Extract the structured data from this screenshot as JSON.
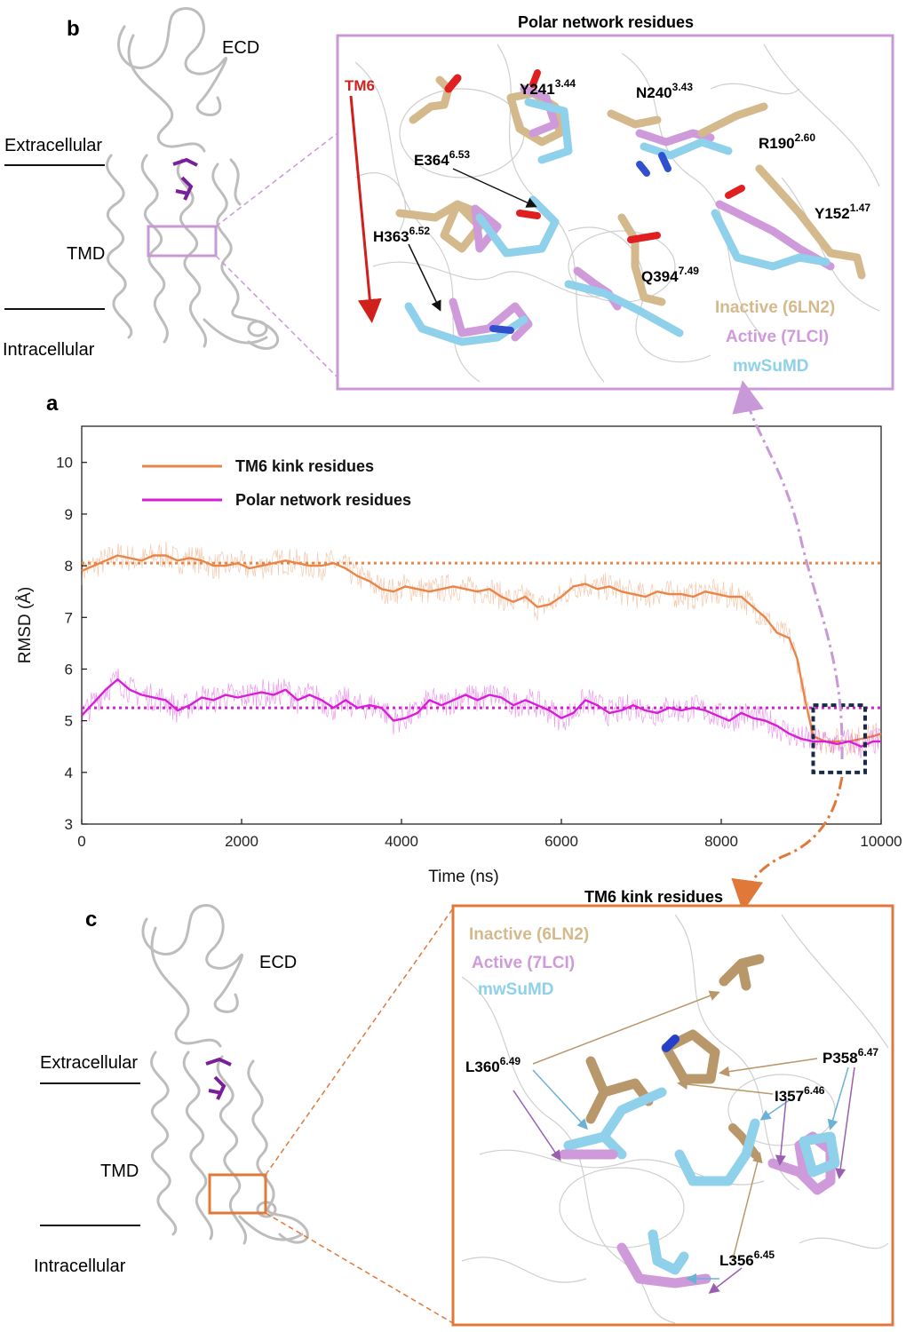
{
  "panel_letters": {
    "a": "a",
    "b": "b",
    "c": "c"
  },
  "receptor_labels": {
    "ecd": "ECD",
    "extracellular": "Extracellular",
    "tmd": "TMD",
    "intracellular": "Intracellular"
  },
  "panel_b": {
    "title": "Polar network residues",
    "tm6": "TM6",
    "residues": [
      {
        "name": "Y241",
        "sup": "3.44"
      },
      {
        "name": "N240",
        "sup": "3.43"
      },
      {
        "name": "R190",
        "sup": "2.60"
      },
      {
        "name": "E364",
        "sup": "6.53"
      },
      {
        "name": "Y152",
        "sup": "1.47"
      },
      {
        "name": "H363",
        "sup": "6.52"
      },
      {
        "name": "Q394",
        "sup": "7.49"
      }
    ],
    "legend": [
      {
        "label": "Inactive (6LN2)",
        "color": "#d4b98c"
      },
      {
        "label": "Active (7LCI)",
        "color": "#cf9ad9"
      },
      {
        "label": "mwSuMD",
        "color": "#8fd0ea"
      }
    ]
  },
  "panel_c": {
    "title": "TM6 kink residues",
    "residues": [
      {
        "name": "L360",
        "sup": "6.49"
      },
      {
        "name": "P358",
        "sup": "6.47"
      },
      {
        "name": "I357",
        "sup": "6.46"
      },
      {
        "name": "L356",
        "sup": "6.45"
      }
    ],
    "legend": [
      {
        "label": "Inactive (6LN2)",
        "color": "#d4b98c"
      },
      {
        "label": "Active (7LCI)",
        "color": "#cf9ad9"
      },
      {
        "label": "mwSuMD",
        "color": "#8fd0ea"
      }
    ]
  },
  "chart_data": {
    "type": "line",
    "xlabel": "Time (ns)",
    "ylabel": "RMSD (Å)",
    "xlim": [
      0,
      10000
    ],
    "ylim": [
      3,
      10.7
    ],
    "xticks": [
      0,
      2000,
      4000,
      6000,
      8000,
      10000
    ],
    "yticks": [
      3,
      4,
      5,
      6,
      7,
      8,
      9,
      10
    ],
    "grid": false,
    "legend_position": "top-left",
    "reference_lines": [
      {
        "series": "TM6 kink residues",
        "y": 8.05,
        "style": "dotted"
      },
      {
        "series": "Polar network residues",
        "y": 5.25,
        "style": "dotted"
      }
    ],
    "highlight_box": {
      "x": [
        9150,
        9800
      ],
      "y": [
        4.0,
        5.3
      ]
    },
    "series": [
      {
        "name": "TM6 kink residues",
        "color": "#e8864a",
        "x": [
          0,
          150,
          300,
          450,
          600,
          750,
          900,
          1050,
          1200,
          1350,
          1500,
          1650,
          1800,
          1950,
          2100,
          2250,
          2400,
          2550,
          2700,
          2850,
          3000,
          3150,
          3300,
          3450,
          3600,
          3750,
          3900,
          4050,
          4200,
          4350,
          4500,
          4650,
          4800,
          4950,
          5100,
          5250,
          5400,
          5550,
          5700,
          5850,
          6000,
          6150,
          6300,
          6450,
          6600,
          6750,
          6900,
          7050,
          7200,
          7350,
          7500,
          7650,
          7800,
          7950,
          8100,
          8250,
          8400,
          8550,
          8700,
          8850,
          8950,
          9050,
          9150,
          9300,
          9450,
          9600,
          9750,
          9900,
          10000
        ],
        "values": [
          7.9,
          8.0,
          8.1,
          8.2,
          8.15,
          8.1,
          8.2,
          8.2,
          8.1,
          8.15,
          8.1,
          8.0,
          8.0,
          8.05,
          7.95,
          8.0,
          8.05,
          8.1,
          8.05,
          8.0,
          8.0,
          8.05,
          7.95,
          7.8,
          7.7,
          7.55,
          7.5,
          7.6,
          7.55,
          7.5,
          7.55,
          7.6,
          7.55,
          7.5,
          7.55,
          7.4,
          7.3,
          7.4,
          7.2,
          7.25,
          7.4,
          7.6,
          7.65,
          7.55,
          7.6,
          7.5,
          7.45,
          7.4,
          7.5,
          7.45,
          7.45,
          7.4,
          7.5,
          7.45,
          7.4,
          7.4,
          7.2,
          7.0,
          6.7,
          6.6,
          6.2,
          5.4,
          4.7,
          4.6,
          4.6,
          4.6,
          4.65,
          4.7,
          4.75
        ]
      },
      {
        "name": "Polar network residues",
        "color": "#d71ed7",
        "x": [
          0,
          150,
          300,
          450,
          600,
          750,
          900,
          1050,
          1200,
          1350,
          1500,
          1650,
          1800,
          1950,
          2100,
          2250,
          2400,
          2550,
          2700,
          2850,
          3000,
          3150,
          3300,
          3450,
          3600,
          3750,
          3900,
          4050,
          4200,
          4350,
          4500,
          4650,
          4800,
          4950,
          5100,
          5250,
          5400,
          5550,
          5700,
          5850,
          6000,
          6150,
          6300,
          6450,
          6600,
          6750,
          6900,
          7050,
          7200,
          7350,
          7500,
          7650,
          7800,
          7950,
          8100,
          8250,
          8400,
          8550,
          8700,
          8850,
          9000,
          9150,
          9300,
          9450,
          9600,
          9750,
          9900,
          10000
        ],
        "values": [
          5.1,
          5.35,
          5.6,
          5.8,
          5.6,
          5.5,
          5.45,
          5.4,
          5.2,
          5.3,
          5.45,
          5.4,
          5.5,
          5.45,
          5.5,
          5.55,
          5.5,
          5.6,
          5.4,
          5.5,
          5.4,
          5.25,
          5.4,
          5.25,
          5.3,
          5.25,
          5.0,
          5.05,
          5.15,
          5.4,
          5.3,
          5.4,
          5.5,
          5.4,
          5.5,
          5.45,
          5.3,
          5.4,
          5.3,
          5.2,
          5.05,
          5.15,
          5.4,
          5.3,
          5.15,
          5.2,
          5.3,
          5.2,
          5.15,
          5.25,
          5.2,
          5.25,
          5.2,
          5.1,
          5.0,
          5.15,
          5.05,
          5.0,
          4.9,
          4.75,
          4.65,
          4.6,
          4.6,
          4.55,
          4.6,
          4.5,
          4.6,
          4.6
        ]
      }
    ]
  }
}
